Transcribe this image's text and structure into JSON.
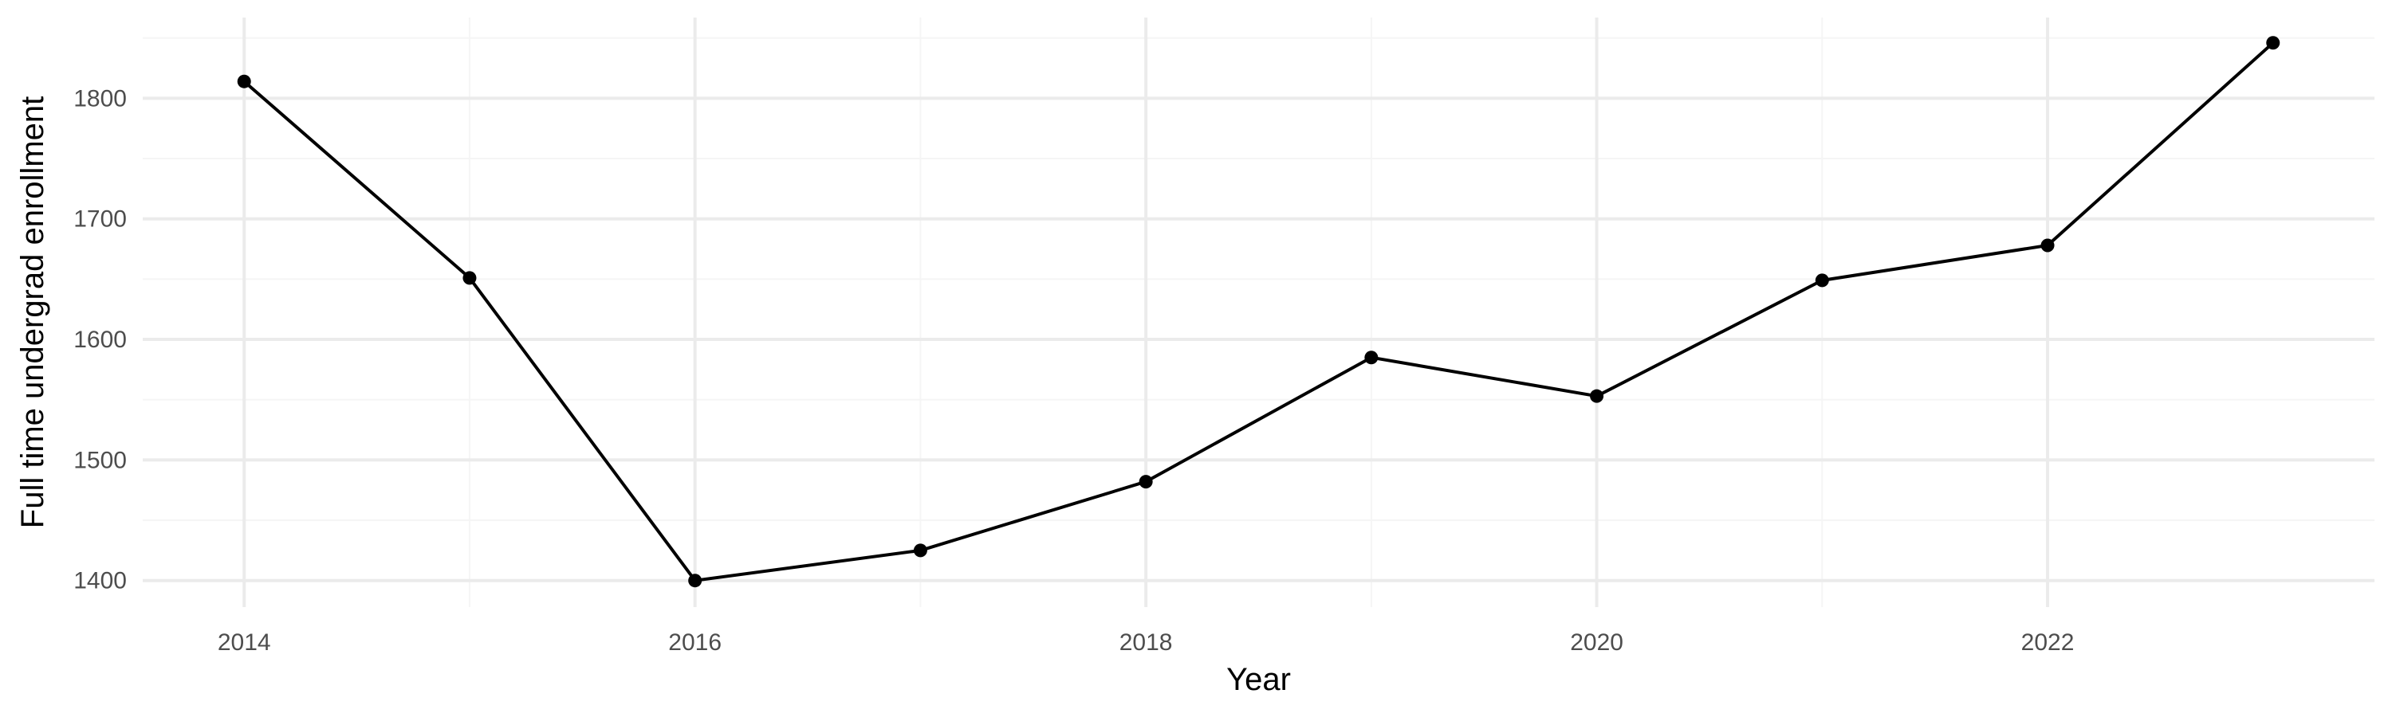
{
  "chart_data": {
    "type": "line",
    "title": "",
    "xlabel": "Year",
    "ylabel": "Full time undergrad enrollment",
    "x": [
      2014,
      2015,
      2016,
      2017,
      2018,
      2019,
      2020,
      2021,
      2022,
      2023
    ],
    "series": [
      {
        "values": [
          1814,
          1651,
          1400,
          1425,
          1482,
          1585,
          1553,
          1649,
          1678,
          1846
        ]
      }
    ],
    "xlim": [
      2013.55,
      2023.45
    ],
    "ylim": [
      1378,
      1867
    ],
    "x_ticks": [
      2014,
      2016,
      2018,
      2020,
      2022
    ],
    "x_tick_labels": [
      "2014",
      "2016",
      "2018",
      "2020",
      "2022"
    ],
    "y_ticks": [
      1400,
      1500,
      1600,
      1700,
      1800
    ],
    "y_tick_labels": [
      "1400",
      "1500",
      "1600",
      "1700",
      "1800"
    ],
    "grid": true,
    "legend": "none",
    "colors": {
      "line": "#000000",
      "points": "#000000",
      "grid_major": "#ebebeb",
      "grid_minor": "#f5f5f5",
      "tick_text": "#4d4d4d",
      "background": "#ffffff"
    }
  }
}
